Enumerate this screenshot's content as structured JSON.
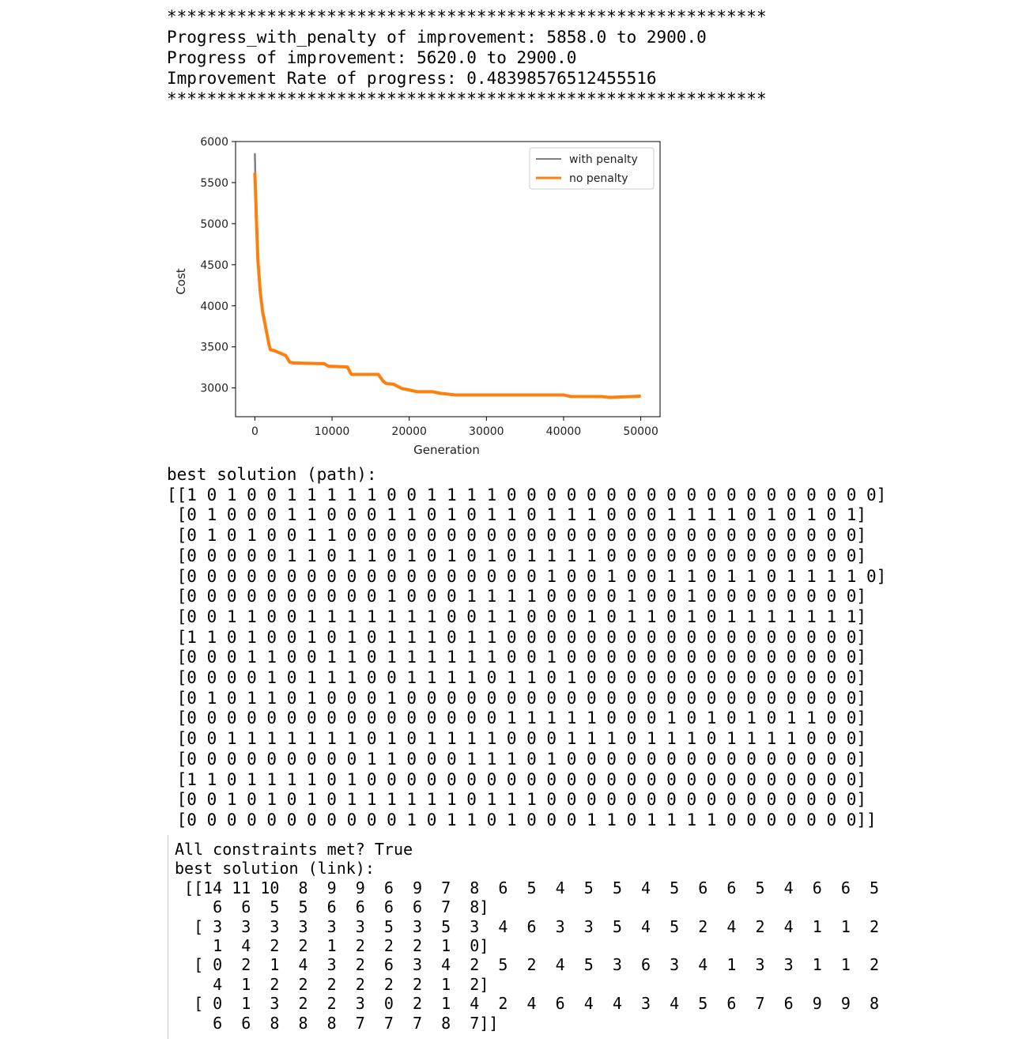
{
  "header": {
    "stars_top": "************************************************************",
    "line1": "Progress_with_penalty of improvement: 5858.0 to 2900.0",
    "line2": "Progress of improvement: 5620.0 to 2900.0",
    "line3": "Improvement Rate of progress: 0.48398576512455516",
    "stars_bottom": "************************************************************"
  },
  "chart_data": {
    "type": "line",
    "title": "",
    "xlabel": "Generation",
    "ylabel": "Cost",
    "xlim": [
      -2500,
      52500
    ],
    "ylim": [
      2650,
      6000
    ],
    "xticks": [
      0,
      10000,
      20000,
      30000,
      40000,
      50000
    ],
    "yticks": [
      3000,
      3500,
      4000,
      4500,
      5000,
      5500,
      6000
    ],
    "legend_position": "top-right",
    "series": [
      {
        "name": "with penalty",
        "color": "#808080",
        "x": [
          0,
          100,
          200,
          400,
          700,
          1000,
          1500,
          1800,
          2000,
          2500,
          4000,
          4500,
          5000,
          9000,
          9500,
          12000,
          12500,
          16000,
          16600,
          17000,
          18000,
          19000,
          20000,
          21000,
          23000,
          24000,
          25000,
          26000,
          40000,
          41000,
          45000,
          46000,
          50000
        ],
        "y": [
          5858,
          5400,
          5100,
          4600,
          4200,
          3950,
          3700,
          3550,
          3470,
          3460,
          3400,
          3320,
          3310,
          3300,
          3270,
          3260,
          3170,
          3170,
          3090,
          3060,
          3050,
          3000,
          2980,
          2960,
          2960,
          2940,
          2930,
          2920,
          2920,
          2900,
          2900,
          2890,
          2900
        ]
      },
      {
        "name": "no penalty",
        "color": "#ff7f0e",
        "x": [
          0,
          100,
          200,
          400,
          700,
          1000,
          1500,
          1800,
          2000,
          2500,
          4000,
          4500,
          5000,
          9000,
          9500,
          12000,
          12500,
          16000,
          16600,
          17000,
          18000,
          19000,
          20000,
          21000,
          23000,
          24000,
          25000,
          26000,
          40000,
          41000,
          45000,
          46000,
          50000
        ],
        "y": [
          5620,
          5350,
          5050,
          4550,
          4170,
          3930,
          3690,
          3545,
          3465,
          3455,
          3395,
          3315,
          3305,
          3295,
          3265,
          3255,
          3165,
          3165,
          3085,
          3055,
          3045,
          2995,
          2975,
          2955,
          2955,
          2935,
          2925,
          2915,
          2915,
          2895,
          2895,
          2885,
          2900
        ]
      }
    ]
  },
  "path": {
    "label": "best solution (path):",
    "rows": [
      "[[1 0 1 0 0 1 1 1 1 1 0 0 1 1 1 1 0 0 0 0 0 0 0 0 0 0 0 0 0 0 0 0 0 0 0]",
      " [0 1 0 0 0 1 1 0 0 0 1 1 0 1 0 1 1 0 1 1 1 0 0 0 1 1 1 1 0 1 0 1 0 1]",
      " [0 1 0 1 0 0 1 1 0 0 0 0 0 0 0 0 0 0 0 0 0 0 0 0 0 0 0 0 0 0 0 0 0 0]",
      " [0 0 0 0 0 1 1 0 1 1 0 1 0 1 0 1 0 1 1 1 1 0 0 0 0 0 0 0 0 0 0 0 0 0]",
      " [0 0 0 0 0 0 0 0 0 0 0 0 0 0 0 0 0 0 1 0 0 1 0 0 1 1 0 1 1 0 1 1 1 1 0]",
      " [0 0 0 0 0 0 0 0 0 0 1 0 0 0 1 1 1 1 0 0 0 0 1 0 0 1 0 0 0 0 0 0 0 0]",
      " [0 0 1 1 0 0 1 1 1 1 1 1 1 0 0 1 1 0 0 0 1 0 1 1 0 1 0 1 1 1 1 1 1 1]",
      " [1 1 0 1 0 0 1 0 1 0 1 1 1 0 1 1 0 0 0 0 0 0 0 0 0 0 0 0 0 0 0 0 0 0]",
      " [0 0 0 1 1 0 0 1 1 0 1 1 1 1 1 1 0 0 1 0 0 0 0 0 0 0 0 0 0 0 0 0 0 0]",
      " [0 0 0 0 1 0 1 1 1 0 0 1 1 1 1 0 1 1 0 1 0 0 0 0 0 0 0 0 0 0 0 0 0 0]",
      " [0 1 0 1 1 0 1 0 0 0 1 0 0 0 0 0 0 0 0 0 0 0 0 0 0 0 0 0 0 0 0 0 0 0]",
      " [0 0 0 0 0 0 0 0 0 0 0 0 0 0 0 0 1 1 1 1 1 0 0 0 1 0 1 0 1 0 1 1 0 0]",
      " [0 0 1 1 1 1 1 1 1 0 1 0 1 1 1 1 0 0 0 1 1 1 0 1 1 1 0 1 1 1 1 0 0 0]",
      " [0 0 0 0 0 0 0 0 0 1 1 0 0 0 1 1 1 0 1 0 0 0 0 0 0 0 0 0 0 0 0 0 0 0]",
      " [1 1 0 1 1 1 1 0 1 0 0 0 0 0 0 0 0 0 0 0 0 0 0 0 0 0 0 0 0 0 0 0 0 0]",
      " [0 0 1 0 1 0 1 0 1 1 1 1 1 1 0 1 1 1 0 0 0 0 0 0 0 0 0 0 0 0 0 0 0 0]",
      " [0 0 0 0 0 0 0 0 0 0 0 1 0 1 1 0 1 0 0 0 1 1 0 1 1 1 1 0 0 0 0 0 0 0]]"
    ]
  },
  "link": {
    "constraints": "All constraints met? True",
    "label": "best solution (link):",
    "rows": [
      " [[14 11 10  8  9  9  6  9  7  8  6  5  4  5  5  4  5  6  6  5  4  6  6  5",
      "    6  6  5  5  6  6  6  6  7  8]",
      "  [ 3  3  3  3  3  3  5  3  5  3  4  6  3  3  5  4  5  2  4  2  4  1  1  2",
      "    1  4  2  2  1  2  2  2  1  0]",
      "  [ 0  2  1  4  3  2  6  3  4  2  5  2  4  5  3  6  3  4  1  3  3  1  1  2",
      "    4  1  2  2  2  2  2  2  1  2]",
      "  [ 0  1  3  2  2  3  0  2  1  4  2  4  6  4  4  3  4  5  6  7  6  9  9  8",
      "    6  6  8  8  8  7  7  7  8  7]]"
    ]
  }
}
